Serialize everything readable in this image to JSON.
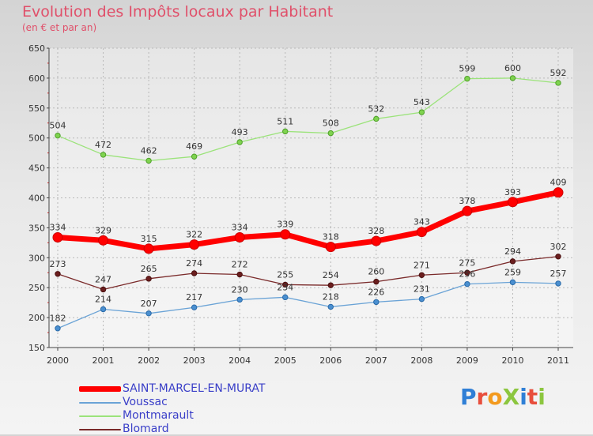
{
  "title": "Evolution des Impôts locaux par Habitant",
  "subtitle": "(en € et par an)",
  "brand": "ProXiti",
  "chart_data": {
    "type": "line",
    "title": "Evolution des Impôts locaux par Habitant",
    "subtitle": "(en € et par an)",
    "categories": [
      "2000",
      "2001",
      "2002",
      "2003",
      "2004",
      "2005",
      "2006",
      "2007",
      "2008",
      "2009",
      "2010",
      "2011"
    ],
    "ylim": [
      150,
      650
    ],
    "yticks": [
      150,
      200,
      250,
      300,
      350,
      400,
      450,
      500,
      550,
      600,
      650
    ],
    "grid": true,
    "legend_position": "bottom-left",
    "series": [
      {
        "name": "SAINT-MARCEL-EN-MURAT",
        "color": "#ff0000",
        "values": [
          334,
          329,
          315,
          322,
          334,
          339,
          318,
          328,
          343,
          378,
          393,
          409
        ]
      },
      {
        "name": "Voussac",
        "color": "#6aa3d6",
        "values": [
          182,
          214,
          207,
          217,
          230,
          234,
          218,
          226,
          231,
          256,
          259,
          257
        ]
      },
      {
        "name": "Montmarault",
        "color": "#9be37a",
        "values": [
          504,
          472,
          462,
          469,
          493,
          511,
          508,
          532,
          543,
          599,
          600,
          592
        ]
      },
      {
        "name": "Blomard",
        "color": "#7a2a2a",
        "values": [
          273,
          247,
          265,
          274,
          272,
          255,
          254,
          260,
          271,
          275,
          294,
          302
        ]
      }
    ]
  }
}
